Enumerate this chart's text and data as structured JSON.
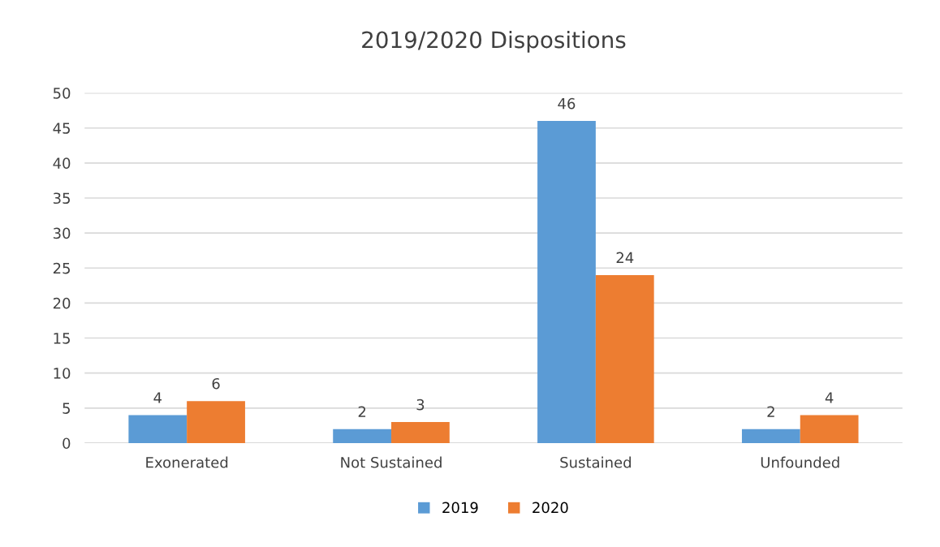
{
  "chart_data": {
    "type": "bar",
    "title": "2019/2020 Dispositions",
    "categories": [
      "Exonerated",
      "Not Sustained",
      "Sustained",
      "Unfounded"
    ],
    "series": [
      {
        "name": "2019",
        "color": "#5b9bd5",
        "values": [
          4,
          2,
          46,
          2
        ]
      },
      {
        "name": "2020",
        "color": "#ed7d31",
        "values": [
          6,
          3,
          24,
          4
        ]
      }
    ],
    "ylim": [
      0,
      50
    ],
    "yticks": [
      0,
      5,
      10,
      15,
      20,
      25,
      30,
      35,
      40,
      45,
      50
    ],
    "grid": "y",
    "legend": "bottom",
    "data_labels": true
  }
}
